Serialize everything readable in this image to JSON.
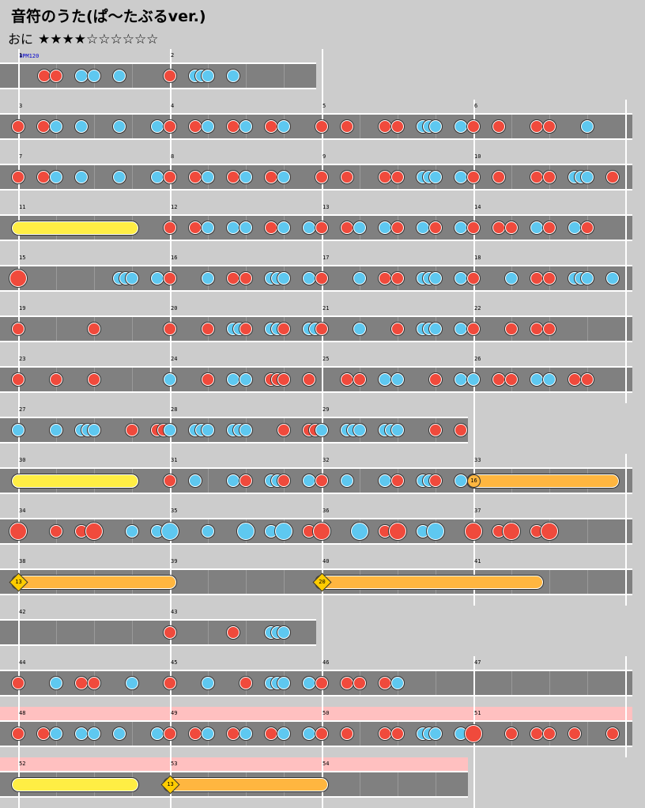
{
  "song": {
    "title": "音符のうた(ぱ〜たぶるver.)",
    "difficulty_label": "おに",
    "stars": "★★★★☆☆☆☆☆☆",
    "bpm_label": "BPM120"
  },
  "colors": {
    "don": "#f04a3c",
    "ka": "#5ec8f0",
    "background": "#cccccc",
    "lane": "#808080",
    "gogo": "#ffc0c0",
    "drumroll": "#ffee44",
    "balloon": "#ffb640"
  },
  "rows": [
    {
      "measures": 2,
      "gogo": false,
      "numbers": [
        "1",
        "2"
      ],
      "notes": [
        [
          "d",
          56
        ],
        [
          "d",
          71
        ],
        [
          "k",
          103
        ],
        [
          "k",
          119
        ],
        [
          "k",
          151
        ],
        [
          "d",
          215
        ],
        [
          "k",
          247
        ],
        [
          "k",
          255
        ],
        [
          "k",
          263
        ],
        [
          "k",
          295
        ]
      ]
    },
    {
      "measures": 4,
      "gogo": false,
      "numbers": [
        "3",
        "4",
        "5",
        "6"
      ],
      "notes": [
        [
          "d",
          23
        ],
        [
          "d",
          55
        ],
        [
          "k",
          71
        ],
        [
          "k",
          103
        ],
        [
          "k",
          151
        ],
        [
          "k",
          199
        ],
        [
          "d",
          215
        ],
        [
          "d",
          247
        ],
        [
          "k",
          263
        ],
        [
          "d",
          295
        ],
        [
          "k",
          311
        ],
        [
          "d",
          343
        ],
        [
          "k",
          359
        ],
        [
          "d",
          407
        ],
        [
          "d",
          439
        ],
        [
          "d",
          487
        ],
        [
          "d",
          503
        ],
        [
          "k",
          535
        ],
        [
          "k",
          543
        ],
        [
          "k",
          551
        ],
        [
          "k",
          583
        ],
        [
          "d",
          599
        ],
        [
          "d",
          631
        ],
        [
          "d",
          679
        ],
        [
          "d",
          695
        ],
        [
          "k",
          743
        ]
      ]
    },
    {
      "measures": 4,
      "gogo": false,
      "numbers": [
        "7",
        "8",
        "9",
        "10"
      ],
      "notes": [
        [
          "d",
          23
        ],
        [
          "d",
          55
        ],
        [
          "k",
          71
        ],
        [
          "k",
          103
        ],
        [
          "k",
          151
        ],
        [
          "k",
          199
        ],
        [
          "d",
          215
        ],
        [
          "d",
          247
        ],
        [
          "k",
          263
        ],
        [
          "d",
          295
        ],
        [
          "k",
          311
        ],
        [
          "d",
          343
        ],
        [
          "k",
          359
        ],
        [
          "d",
          407
        ],
        [
          "d",
          439
        ],
        [
          "d",
          487
        ],
        [
          "d",
          503
        ],
        [
          "k",
          535
        ],
        [
          "k",
          543
        ],
        [
          "k",
          551
        ],
        [
          "k",
          583
        ],
        [
          "d",
          599
        ],
        [
          "d",
          631
        ],
        [
          "d",
          679
        ],
        [
          "d",
          695
        ],
        [
          "k",
          727
        ],
        [
          "k",
          735
        ],
        [
          "k",
          743
        ],
        [
          "d",
          775
        ]
      ]
    },
    {
      "measures": 4,
      "gogo": false,
      "numbers": [
        "11",
        "12",
        "13",
        "14"
      ],
      "rolls": [
        {
          "start": 23,
          "end": 167,
          "kind": "yellow"
        }
      ],
      "notes": [
        [
          "d",
          215
        ],
        [
          "d",
          247
        ],
        [
          "k",
          263
        ],
        [
          "k",
          295
        ],
        [
          "k",
          311
        ],
        [
          "d",
          343
        ],
        [
          "k",
          359
        ],
        [
          "k",
          391
        ],
        [
          "d",
          407
        ],
        [
          "d",
          439
        ],
        [
          "k",
          455
        ],
        [
          "k",
          487
        ],
        [
          "d",
          503
        ],
        [
          "k",
          535
        ],
        [
          "d",
          551
        ],
        [
          "k",
          583
        ],
        [
          "d",
          599
        ],
        [
          "d",
          631
        ],
        [
          "d",
          647
        ],
        [
          "k",
          679
        ],
        [
          "d",
          695
        ],
        [
          "k",
          727
        ],
        [
          "d",
          743
        ]
      ]
    },
    {
      "measures": 4,
      "gogo": false,
      "numbers": [
        "15",
        "16",
        "17",
        "18"
      ],
      "notes": [
        [
          "D",
          23
        ],
        [
          "k",
          151
        ],
        [
          "k",
          159
        ],
        [
          "k",
          167
        ],
        [
          "k",
          199
        ],
        [
          "d",
          215
        ],
        [
          "k",
          263
        ],
        [
          "d",
          295
        ],
        [
          "d",
          311
        ],
        [
          "k",
          343
        ],
        [
          "k",
          351
        ],
        [
          "k",
          359
        ],
        [
          "k",
          391
        ],
        [
          "d",
          407
        ],
        [
          "k",
          455
        ],
        [
          "d",
          487
        ],
        [
          "d",
          503
        ],
        [
          "k",
          535
        ],
        [
          "k",
          543
        ],
        [
          "k",
          551
        ],
        [
          "k",
          583
        ],
        [
          "d",
          599
        ],
        [
          "k",
          647
        ],
        [
          "d",
          679
        ],
        [
          "d",
          695
        ],
        [
          "k",
          727
        ],
        [
          "k",
          735
        ],
        [
          "k",
          743
        ],
        [
          "k",
          775
        ]
      ]
    },
    {
      "measures": 4,
      "gogo": false,
      "numbers": [
        "19",
        "20",
        "21",
        "22"
      ],
      "notes": [
        [
          "d",
          23
        ],
        [
          "d",
          119
        ],
        [
          "d",
          215
        ],
        [
          "d",
          263
        ],
        [
          "k",
          295
        ],
        [
          "k",
          303
        ],
        [
          "d",
          311
        ],
        [
          "k",
          343
        ],
        [
          "k",
          351
        ],
        [
          "d",
          359
        ],
        [
          "k",
          391
        ],
        [
          "k",
          399
        ],
        [
          "d",
          407
        ],
        [
          "k",
          455
        ],
        [
          "d",
          503
        ],
        [
          "k",
          535
        ],
        [
          "k",
          543
        ],
        [
          "k",
          551
        ],
        [
          "k",
          583
        ],
        [
          "d",
          599
        ],
        [
          "d",
          647
        ],
        [
          "d",
          679
        ],
        [
          "d",
          695
        ]
      ]
    },
    {
      "measures": 4,
      "gogo": false,
      "numbers": [
        "23",
        "24",
        "25",
        "26"
      ],
      "notes": [
        [
          "d",
          23
        ],
        [
          "d",
          71
        ],
        [
          "d",
          119
        ],
        [
          "k",
          215
        ],
        [
          "d",
          263
        ],
        [
          "k",
          295
        ],
        [
          "k",
          311
        ],
        [
          "d",
          343
        ],
        [
          "d",
          351
        ],
        [
          "d",
          359
        ],
        [
          "d",
          391
        ],
        [
          "d",
          439
        ],
        [
          "d",
          455
        ],
        [
          "k",
          487
        ],
        [
          "k",
          503
        ],
        [
          "d",
          551
        ],
        [
          "k",
          583
        ],
        [
          "k",
          599
        ],
        [
          "d",
          631
        ],
        [
          "d",
          647
        ],
        [
          "k",
          679
        ],
        [
          "k",
          695
        ],
        [
          "d",
          727
        ],
        [
          "d",
          743
        ]
      ]
    },
    {
      "measures": 3,
      "gogo": false,
      "numbers": [
        "27",
        "28",
        "29"
      ],
      "notes": [
        [
          "k",
          23
        ],
        [
          "k",
          71
        ],
        [
          "k",
          103
        ],
        [
          "k",
          111
        ],
        [
          "k",
          119
        ],
        [
          "d",
          167
        ],
        [
          "d",
          199
        ],
        [
          "d",
          207
        ],
        [
          "k",
          215
        ],
        [
          "k",
          247
        ],
        [
          "k",
          255
        ],
        [
          "k",
          263
        ],
        [
          "k",
          295
        ],
        [
          "k",
          303
        ],
        [
          "k",
          311
        ],
        [
          "d",
          359
        ],
        [
          "d",
          391
        ],
        [
          "d",
          399
        ],
        [
          "k",
          407
        ],
        [
          "k",
          439
        ],
        [
          "k",
          447
        ],
        [
          "k",
          455
        ],
        [
          "k",
          487
        ],
        [
          "k",
          495
        ],
        [
          "k",
          503
        ],
        [
          "d",
          551
        ],
        [
          "d",
          583
        ]
      ]
    },
    {
      "measures": 4,
      "gogo": false,
      "numbers": [
        "30",
        "31",
        "32",
        "33"
      ],
      "rolls": [
        {
          "start": 23,
          "end": 167,
          "kind": "yellow"
        },
        {
          "start": 599,
          "end": 775,
          "kind": "balloon"
        }
      ],
      "balloons": [
        {
          "x": 599,
          "count": "16",
          "shape": "round"
        }
      ],
      "notes": [
        [
          "d",
          215
        ],
        [
          "k",
          247
        ],
        [
          "k",
          295
        ],
        [
          "d",
          311
        ],
        [
          "k",
          343
        ],
        [
          "k",
          351
        ],
        [
          "d",
          359
        ],
        [
          "k",
          391
        ],
        [
          "d",
          407
        ],
        [
          "k",
          439
        ],
        [
          "k",
          487
        ],
        [
          "d",
          503
        ],
        [
          "k",
          535
        ],
        [
          "k",
          543
        ],
        [
          "d",
          551
        ],
        [
          "k",
          583
        ]
      ]
    },
    {
      "measures": 4,
      "gogo": false,
      "numbers": [
        "34",
        "35",
        "36",
        "37"
      ],
      "notes": [
        [
          "D",
          23
        ],
        [
          "d",
          71
        ],
        [
          "d",
          103
        ],
        [
          "D",
          119
        ],
        [
          "k",
          167
        ],
        [
          "k",
          199
        ],
        [
          "K",
          215
        ],
        [
          "k",
          263
        ],
        [
          "K",
          311
        ],
        [
          "k",
          343
        ],
        [
          "K",
          359
        ],
        [
          "d",
          391
        ],
        [
          "D",
          407
        ],
        [
          "K",
          455
        ],
        [
          "d",
          487
        ],
        [
          "D",
          503
        ],
        [
          "k",
          535
        ],
        [
          "K",
          551
        ],
        [
          "D",
          599
        ],
        [
          "d",
          631
        ],
        [
          "D",
          647
        ],
        [
          "d",
          679
        ],
        [
          "D",
          695
        ]
      ]
    },
    {
      "measures": 4,
      "gogo": false,
      "numbers": [
        "38",
        "39",
        "40",
        "41"
      ],
      "rolls": [
        {
          "start": 23,
          "end": 215,
          "kind": "balloon"
        },
        {
          "start": 407,
          "end": 679,
          "kind": "balloon"
        }
      ],
      "balloons": [
        {
          "x": 23,
          "count": "13",
          "shape": "diamond"
        },
        {
          "x": 407,
          "count": "20",
          "shape": "diamond"
        }
      ],
      "notes": []
    },
    {
      "measures": 2,
      "gogo": false,
      "numbers": [
        "42",
        "43"
      ],
      "notes": [
        [
          "d",
          215
        ],
        [
          "d",
          295
        ],
        [
          "k",
          343
        ],
        [
          "k",
          351
        ],
        [
          "k",
          359
        ]
      ]
    },
    {
      "measures": 4,
      "gogo": false,
      "numbers": [
        "44",
        "45",
        "46",
        "47"
      ],
      "notes": [
        [
          "d",
          23
        ],
        [
          "k",
          71
        ],
        [
          "d",
          103
        ],
        [
          "d",
          119
        ],
        [
          "k",
          167
        ],
        [
          "d",
          215
        ],
        [
          "k",
          263
        ],
        [
          "d",
          311
        ],
        [
          "k",
          343
        ],
        [
          "k",
          351
        ],
        [
          "k",
          359
        ],
        [
          "k",
          391
        ],
        [
          "d",
          407
        ],
        [
          "d",
          439
        ],
        [
          "d",
          455
        ],
        [
          "d",
          487
        ],
        [
          "k",
          503
        ]
      ]
    },
    {
      "measures": 4,
      "gogo": true,
      "numbers": [
        "48",
        "49",
        "50",
        "51"
      ],
      "notes": [
        [
          "d",
          23
        ],
        [
          "d",
          55
        ],
        [
          "k",
          71
        ],
        [
          "k",
          103
        ],
        [
          "k",
          119
        ],
        [
          "k",
          151
        ],
        [
          "k",
          199
        ],
        [
          "d",
          215
        ],
        [
          "d",
          247
        ],
        [
          "k",
          263
        ],
        [
          "d",
          295
        ],
        [
          "k",
          311
        ],
        [
          "d",
          343
        ],
        [
          "k",
          359
        ],
        [
          "k",
          391
        ],
        [
          "d",
          407
        ],
        [
          "d",
          439
        ],
        [
          "d",
          487
        ],
        [
          "d",
          503
        ],
        [
          "k",
          535
        ],
        [
          "k",
          543
        ],
        [
          "k",
          551
        ],
        [
          "k",
          583
        ],
        [
          "D",
          599
        ],
        [
          "d",
          647
        ],
        [
          "d",
          679
        ],
        [
          "d",
          695
        ],
        [
          "d",
          727
        ],
        [
          "d",
          775
        ]
      ]
    },
    {
      "measures": 3,
      "gogo": true,
      "numbers": [
        "52",
        "53",
        "54"
      ],
      "rolls": [
        {
          "start": 23,
          "end": 167,
          "kind": "yellow"
        },
        {
          "start": 215,
          "end": 407,
          "kind": "balloon"
        }
      ],
      "balloons": [
        {
          "x": 215,
          "count": "13",
          "shape": "diamond"
        }
      ],
      "notes": []
    }
  ]
}
